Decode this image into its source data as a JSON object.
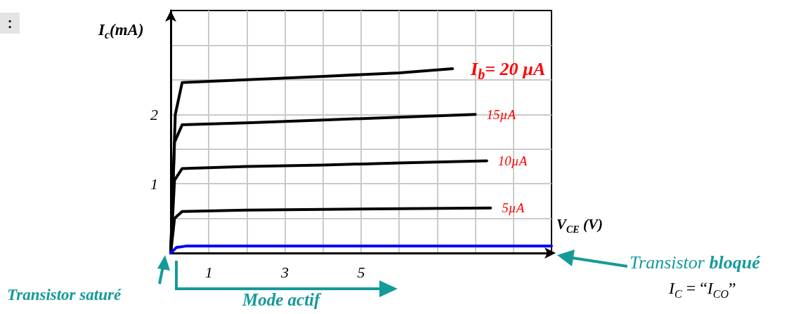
{
  "chart_data": {
    "type": "line",
    "xlabel": "V$_{CE}$ (V)",
    "ylabel": "I$_{c}$(mA)",
    "xlim": [
      0,
      10
    ],
    "xticks": [
      1,
      {
        "value": 2,
        "label": null
      },
      3,
      {
        "value": 4,
        "label": null
      },
      5,
      {
        "value": 6,
        "label": null
      },
      {
        "value": 7,
        "label": null
      },
      {
        "value": 8,
        "label": null
      },
      {
        "value": 9,
        "label": null
      }
    ],
    "ylim": [
      0,
      3.5
    ],
    "yticks": [
      {
        "value": 0.5,
        "label": null
      },
      1,
      {
        "value": 1.5,
        "label": null
      },
      2,
      {
        "value": 2.5,
        "label": null
      },
      {
        "value": 3,
        "label": null
      }
    ],
    "grid": true,
    "marker": "none",
    "line_style": "solid",
    "series": [
      {
        "name": "I$_{b}$= 20 µA",
        "color": "#000000",
        "x": [
          0,
          0.12,
          0.3,
          2,
          4,
          6,
          7.4
        ],
        "values": [
          0,
          2.0,
          2.46,
          2.5,
          2.55,
          2.6,
          2.66
        ]
      },
      {
        "name": "15µA",
        "color": "#000000",
        "x": [
          0,
          0.1,
          0.3,
          2,
          4,
          6,
          8.0
        ],
        "values": [
          0,
          1.6,
          1.85,
          1.88,
          1.92,
          1.96,
          2.0
        ]
      },
      {
        "name": "10µA",
        "color": "#000000",
        "x": [
          0,
          0.1,
          0.3,
          2,
          4,
          6,
          8.3
        ],
        "values": [
          0,
          1.05,
          1.22,
          1.25,
          1.27,
          1.3,
          1.33
        ]
      },
      {
        "name": "5µA",
        "color": "#000000",
        "x": [
          0,
          0.1,
          0.3,
          2,
          4,
          6,
          8.4
        ],
        "values": [
          0,
          0.5,
          0.6,
          0.62,
          0.63,
          0.64,
          0.65
        ]
      },
      {
        "color": "#0000ff",
        "x": [
          0,
          0.15,
          0.4,
          10
        ],
        "values": [
          0,
          0.08,
          0.1,
          0.1
        ]
      }
    ],
    "annotations": [
      ":",
      "Transistor saturé",
      "Mode actif",
      "Transistor bloqué",
      "I$_{C}$ = “I$_{CO}$”"
    ]
  }
}
